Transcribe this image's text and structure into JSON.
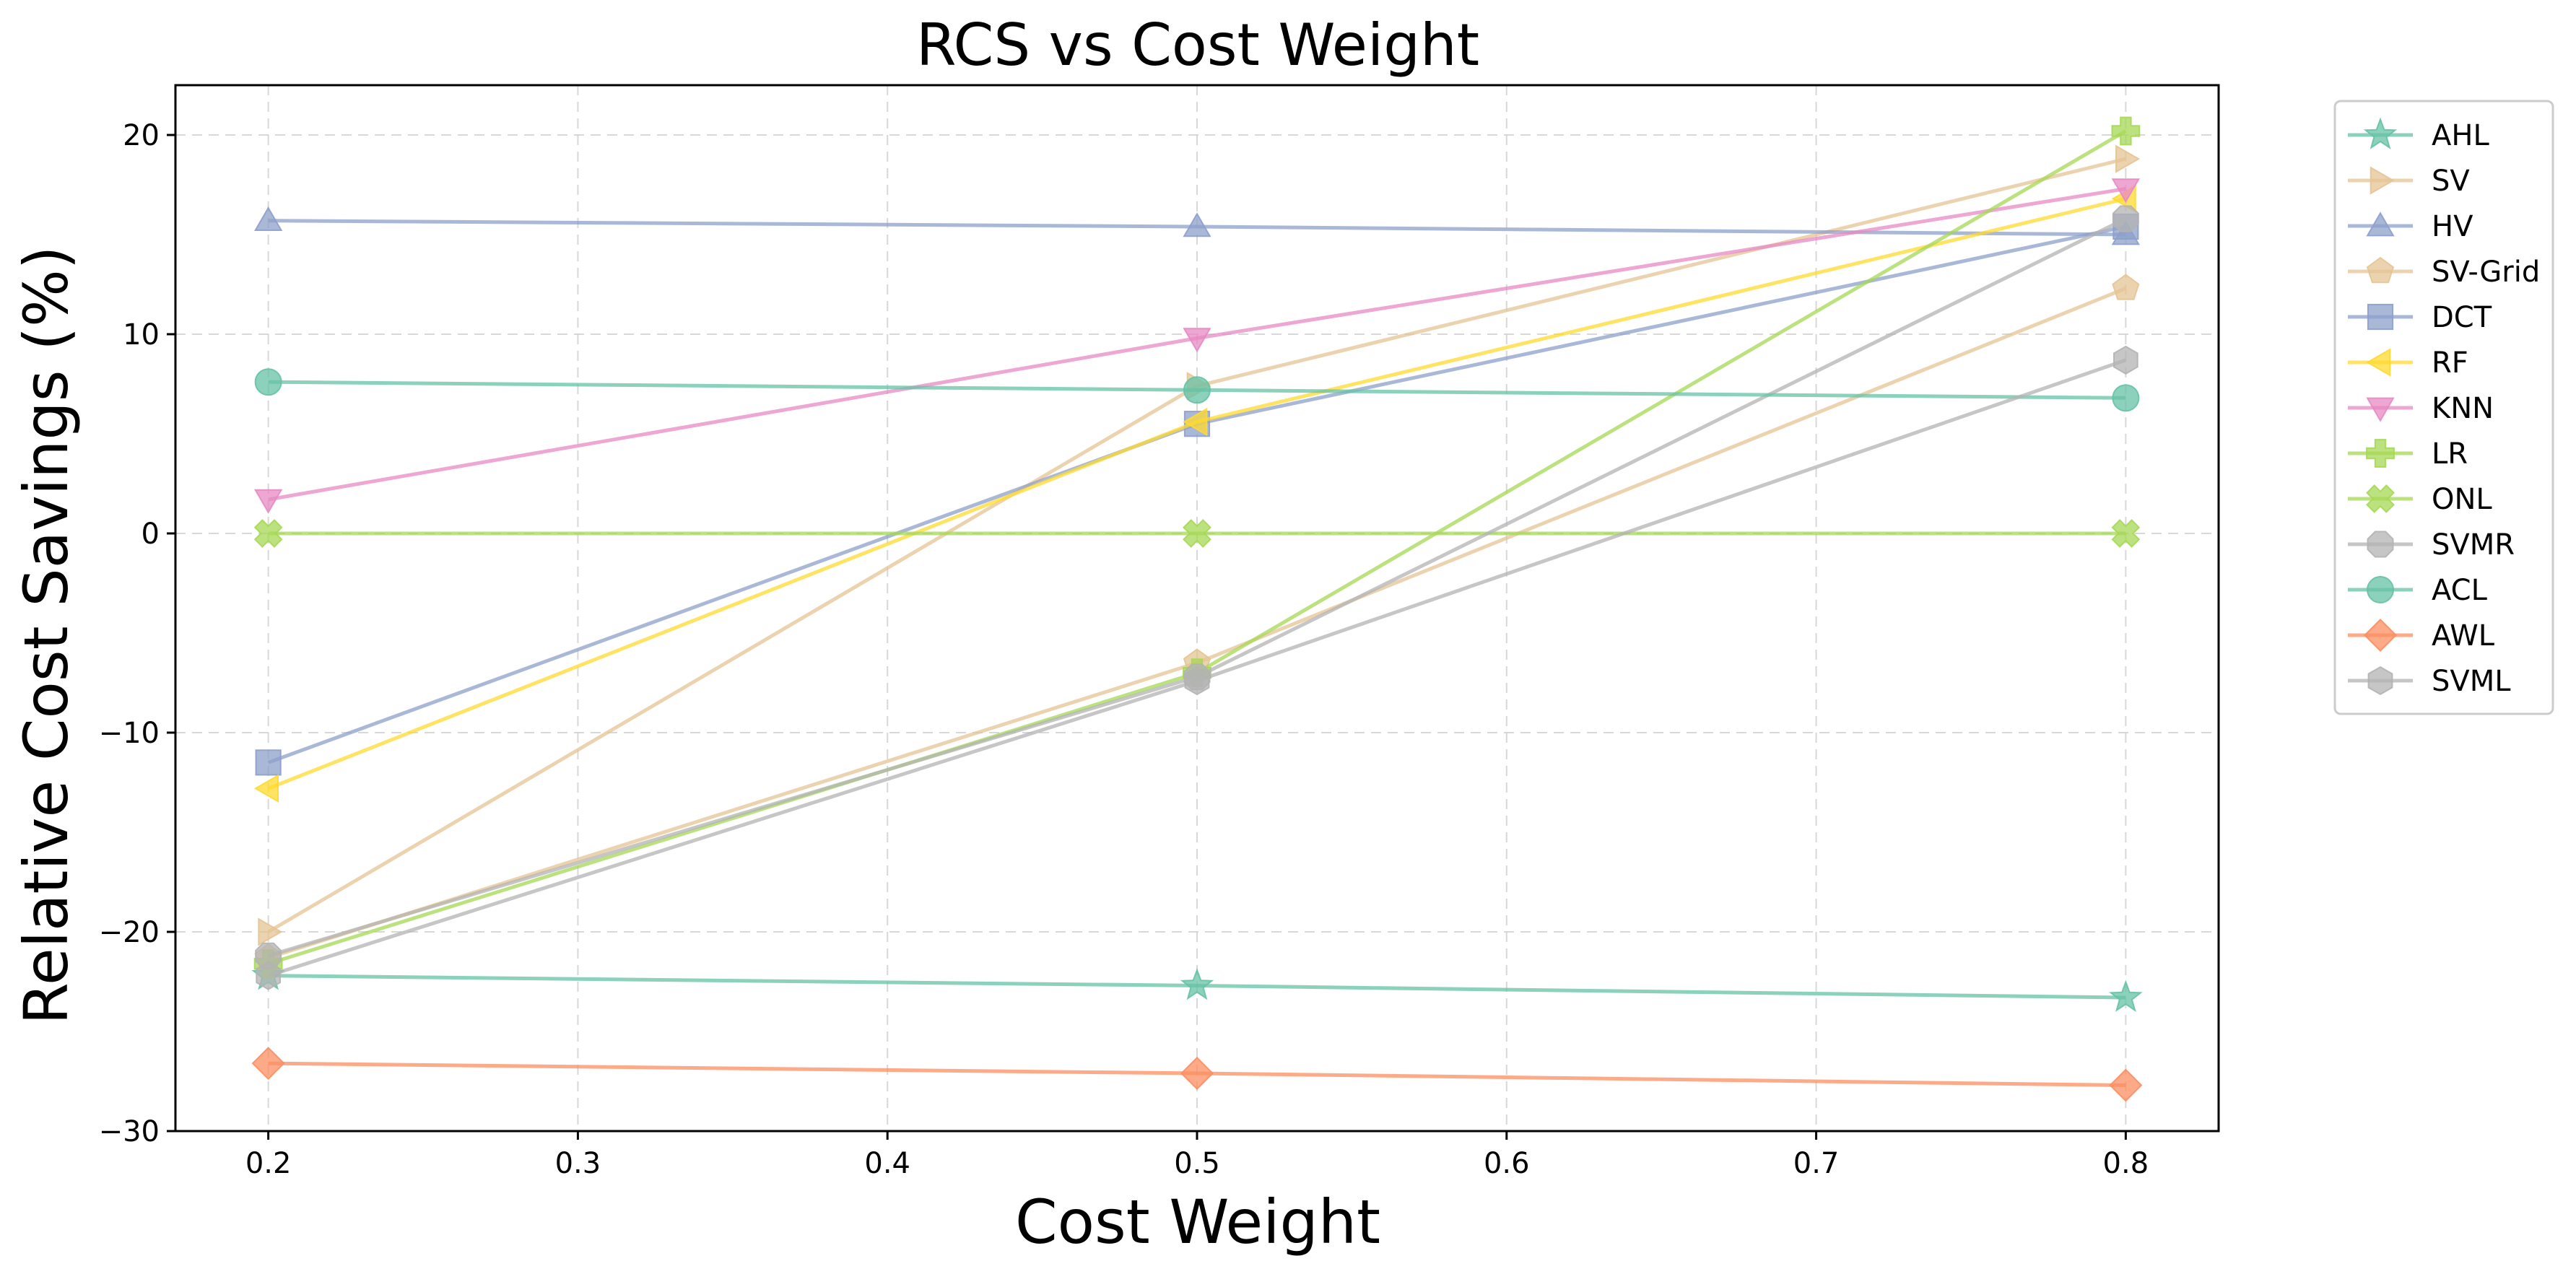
{
  "chart_data": {
    "type": "line",
    "title": "RCS vs Cost Weight",
    "xlabel": "Cost Weight",
    "ylabel": "Relative Cost Savings (%)",
    "x": [
      0.2,
      0.5,
      0.8
    ],
    "xlim": [
      0.17,
      0.83
    ],
    "ylim": [
      -30,
      22.5
    ],
    "xticks": [
      0.2,
      0.3,
      0.4,
      0.5,
      0.6,
      0.7,
      0.8
    ],
    "xtick_labels": [
      "0.2",
      "0.3",
      "0.4",
      "0.5",
      "0.6",
      "0.7",
      "0.8"
    ],
    "yticks": [
      -30,
      -20,
      -10,
      0,
      10,
      20
    ],
    "ytick_labels": [
      "−30",
      "−20",
      "−10",
      "0",
      "10",
      "20"
    ],
    "grid": true,
    "legend_position": "outside-right-top",
    "series": [
      {
        "name": "AHL",
        "values": [
          -22.2,
          -22.7,
          -23.3
        ],
        "color": "#66c2a5",
        "marker": "star"
      },
      {
        "name": "SV",
        "values": [
          -20.0,
          7.4,
          18.8
        ],
        "color": "#e5c494",
        "marker": "triangle-right"
      },
      {
        "name": "HV",
        "values": [
          15.7,
          15.4,
          15.0
        ],
        "color": "#8da0cb",
        "marker": "triangle-up"
      },
      {
        "name": "SV-Grid",
        "values": [
          -21.3,
          -6.5,
          12.3
        ],
        "color": "#e5c494",
        "marker": "pentagon"
      },
      {
        "name": "DCT",
        "values": [
          -11.5,
          5.5,
          15.4
        ],
        "color": "#8da0cb",
        "marker": "square"
      },
      {
        "name": "RF",
        "values": [
          -12.8,
          5.6,
          16.8
        ],
        "color": "#ffd92f",
        "marker": "triangle-left"
      },
      {
        "name": "KNN",
        "values": [
          1.7,
          9.8,
          17.3
        ],
        "color": "#e78ac3",
        "marker": "triangle-down"
      },
      {
        "name": "LR",
        "values": [
          -21.6,
          -7.0,
          20.2
        ],
        "color": "#a6d854",
        "marker": "plus"
      },
      {
        "name": "ONL",
        "values": [
          0.0,
          0.0,
          0.0
        ],
        "color": "#a6d854",
        "marker": "x"
      },
      {
        "name": "SVMR",
        "values": [
          -21.2,
          -7.2,
          15.8
        ],
        "color": "#b3b3b3",
        "marker": "octagon"
      },
      {
        "name": "ACL",
        "values": [
          7.6,
          7.2,
          6.8
        ],
        "color": "#66c2a5",
        "marker": "circle"
      },
      {
        "name": "AWL",
        "values": [
          -26.6,
          -27.1,
          -27.7
        ],
        "color": "#fc8d62",
        "marker": "diamond"
      },
      {
        "name": "SVML",
        "values": [
          -22.2,
          -7.4,
          8.7
        ],
        "color": "#b3b3b3",
        "marker": "hexagon"
      }
    ]
  }
}
